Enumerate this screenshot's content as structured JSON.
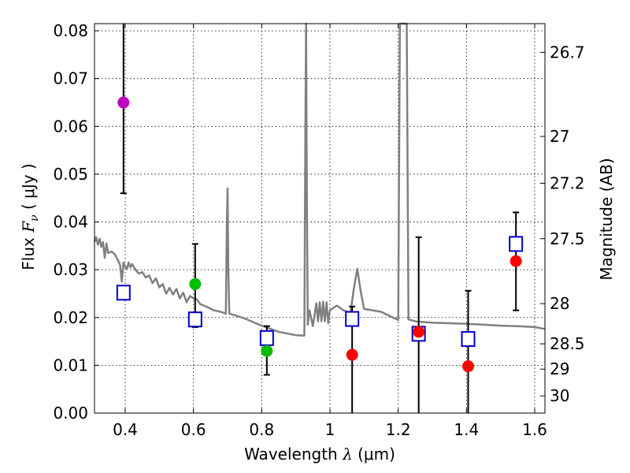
{
  "chart_data": {
    "type": "scatter",
    "xlabel": "Wavelength",
    "xlabel_symbol": "λ",
    "xlabel_unit": "(μm)",
    "ylabel": "Flux",
    "ylabel_symbol": "F",
    "ylabel_subscript": "ν",
    "ylabel_unit": "( μJy )",
    "y2label": "Magnitude (AB)",
    "xlim": [
      0.31,
      1.63
    ],
    "ylim": [
      0.0,
      0.0815
    ],
    "grid": true,
    "x_ticks": [
      0.4,
      0.6,
      0.8,
      1.0,
      1.2,
      1.4,
      1.6
    ],
    "x_tick_labels": [
      "0.4",
      "0.6",
      "0.8",
      "1",
      "1.2",
      "1.4",
      "1.6"
    ],
    "y_ticks": [
      0.0,
      0.01,
      0.02,
      0.03,
      0.04,
      0.05,
      0.06,
      0.07,
      0.08
    ],
    "y_tick_labels": [
      "0.00",
      "0.01",
      "0.02",
      "0.03",
      "0.04",
      "0.05",
      "0.06",
      "0.07",
      "0.08"
    ],
    "y2_ticks": [
      {
        "label": "26.7",
        "flux": 0.0755
      },
      {
        "label": "27",
        "flux": 0.0579
      },
      {
        "label": "27.2",
        "flux": 0.0481
      },
      {
        "label": "27.5",
        "flux": 0.0365
      },
      {
        "label": "28",
        "flux": 0.0229
      },
      {
        "label": "28.5",
        "flux": 0.0145
      },
      {
        "label": "29",
        "flux": 0.0092
      },
      {
        "label": "30",
        "flux": 0.0036
      }
    ],
    "observed_points": [
      {
        "x": 0.395,
        "y": 0.065,
        "yerr_low": 0.046,
        "yerr_high": 0.0815,
        "color": "#bf00bf"
      },
      {
        "x": 0.605,
        "y": 0.027,
        "yerr_low": 0.018,
        "yerr_high": 0.0354,
        "color": "#00bf00"
      },
      {
        "x": 0.815,
        "y": 0.013,
        "yerr_low": 0.008,
        "yerr_high": 0.0182,
        "color": "#00bf00"
      },
      {
        "x": 1.065,
        "y": 0.0122,
        "yerr_low": 0.0,
        "yerr_high": 0.0223,
        "color": "#ff0000"
      },
      {
        "x": 1.26,
        "y": 0.017,
        "yerr_low": 0.0,
        "yerr_high": 0.0368,
        "color": "#ff0000"
      },
      {
        "x": 1.405,
        "y": 0.0098,
        "yerr_low": 0.0,
        "yerr_high": 0.0256,
        "color": "#ff0000"
      },
      {
        "x": 1.545,
        "y": 0.0318,
        "yerr_low": 0.0215,
        "yerr_high": 0.042,
        "color": "#ff0000"
      }
    ],
    "model_points": {
      "color": "#0000cc",
      "x": [
        0.395,
        0.605,
        0.815,
        1.065,
        1.26,
        1.405,
        1.545
      ],
      "y": [
        0.0252,
        0.0196,
        0.0157,
        0.0197,
        0.0166,
        0.0155,
        0.0354
      ]
    },
    "model_spectrum": {
      "color": "#808080",
      "x": [
        0.31,
        0.315,
        0.32,
        0.325,
        0.33,
        0.335,
        0.34,
        0.345,
        0.35,
        0.36,
        0.37,
        0.38,
        0.385,
        0.39,
        0.395,
        0.4,
        0.405,
        0.41,
        0.415,
        0.42,
        0.43,
        0.44,
        0.45,
        0.46,
        0.47,
        0.48,
        0.49,
        0.5,
        0.51,
        0.52,
        0.53,
        0.54,
        0.55,
        0.56,
        0.57,
        0.58,
        0.59,
        0.6,
        0.61,
        0.62,
        0.64,
        0.66,
        0.68,
        0.695,
        0.698,
        0.7,
        0.702,
        0.705,
        0.72,
        0.75,
        0.8,
        0.85,
        0.9,
        0.925,
        0.928,
        0.93,
        0.932,
        0.935,
        0.94,
        0.95,
        0.96,
        0.965,
        0.97,
        0.975,
        0.98,
        0.985,
        0.99,
        0.995,
        1.0,
        1.02,
        1.04,
        1.06,
        1.07,
        1.08,
        1.09,
        1.1,
        1.15,
        1.19,
        1.2,
        1.205,
        1.208,
        1.212,
        1.216,
        1.22,
        1.225,
        1.23,
        1.25,
        1.3,
        1.35,
        1.4,
        1.45,
        1.5,
        1.55,
        1.6,
        1.63
      ],
      "y": [
        0.0358,
        0.0368,
        0.0352,
        0.0365,
        0.0348,
        0.0358,
        0.0325,
        0.0355,
        0.0335,
        0.0338,
        0.0332,
        0.0318,
        0.031,
        0.0275,
        0.0315,
        0.0306,
        0.0302,
        0.0315,
        0.0305,
        0.0312,
        0.03,
        0.0292,
        0.0295,
        0.0284,
        0.0288,
        0.0272,
        0.0282,
        0.0263,
        0.027,
        0.025,
        0.0262,
        0.0248,
        0.026,
        0.024,
        0.0252,
        0.0232,
        0.0245,
        0.024,
        0.0238,
        0.0228,
        0.0222,
        0.0215,
        0.0212,
        0.0208,
        0.04,
        0.047,
        0.03,
        0.0208,
        0.0205,
        0.0198,
        0.0183,
        0.017,
        0.0163,
        0.0162,
        0.06,
        0.0815,
        0.05,
        0.0185,
        0.0215,
        0.0182,
        0.023,
        0.0192,
        0.0232,
        0.0192,
        0.0233,
        0.0192,
        0.0232,
        0.0188,
        0.0215,
        0.0225,
        0.0215,
        0.021,
        0.026,
        0.0302,
        0.0255,
        0.0218,
        0.0212,
        0.0198,
        0.0195,
        0.0815,
        0.0815,
        0.0815,
        0.0815,
        0.0815,
        0.0815,
        0.0196,
        0.0192,
        0.0189,
        0.0188,
        0.0187,
        0.0185,
        0.0183,
        0.0182,
        0.018,
        0.0176
      ]
    }
  }
}
